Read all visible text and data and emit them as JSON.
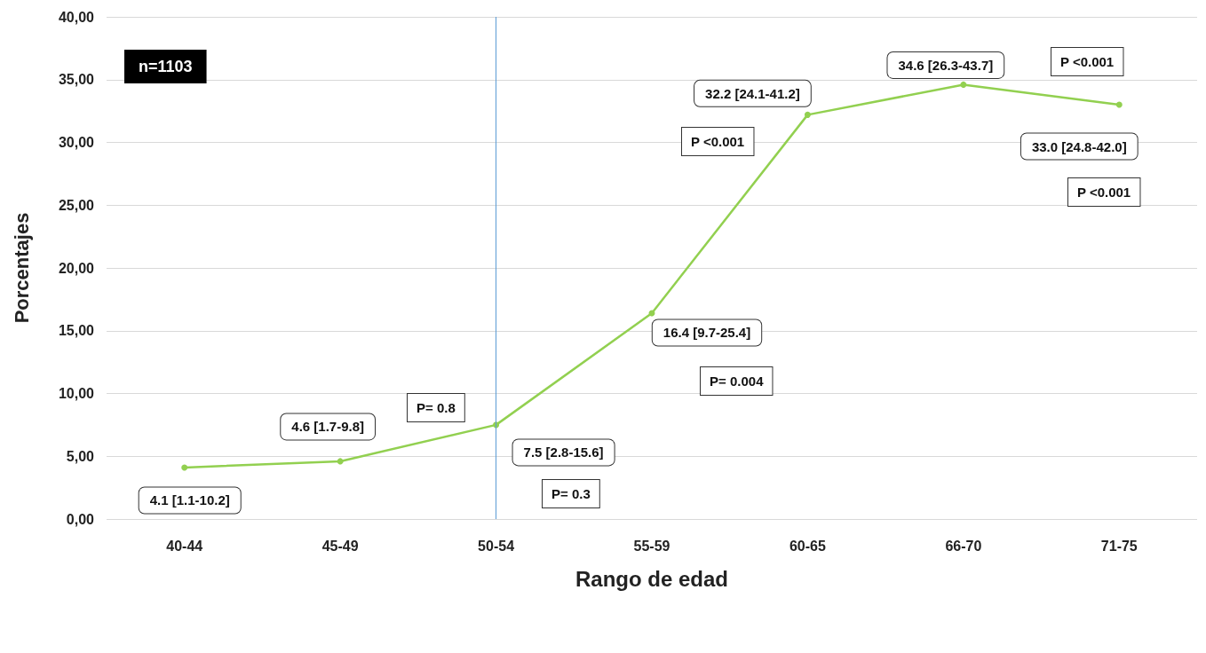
{
  "chart_data": {
    "type": "line",
    "xlabel": "Rango de edad",
    "ylabel": "Porcentajes",
    "categories": [
      "40-44",
      "45-49",
      "50-54",
      "55-59",
      "60-65",
      "66-70",
      "71-75"
    ],
    "series": [
      {
        "color": "#92d050",
        "values": [
          4.1,
          4.6,
          7.5,
          16.4,
          32.2,
          34.6,
          33.0
        ],
        "value_labels": [
          "4.1 [1.1-10.2]",
          "4.6 [1.7-9.8]",
          "7.5 [2.8-15.6]",
          "16.4 [9.7-25.4]",
          "32.2 [24.1-41.2]",
          "34.6 [26.3-43.7]",
          "33.0 [24.8-42.0]"
        ]
      }
    ],
    "ylim": [
      0,
      40
    ],
    "yticks": [
      {
        "value": 0,
        "label": "0,00"
      },
      {
        "value": 5,
        "label": "5,00"
      },
      {
        "value": 10,
        "label": "10,00"
      },
      {
        "value": 15,
        "label": "15,00"
      },
      {
        "value": 20,
        "label": "20,00"
      },
      {
        "value": 25,
        "label": "25,00"
      },
      {
        "value": 30,
        "label": "30,00"
      },
      {
        "value": 35,
        "label": "35,00"
      },
      {
        "value": 40,
        "label": "40,00"
      }
    ],
    "grid": "y",
    "marker": "circle",
    "line_style": "solid",
    "ref_lines": [
      {
        "axis": "x",
        "value": "50-54",
        "color": "#5b9bd5"
      }
    ],
    "annotations": [
      "n=1103",
      "P= 0.8",
      "P= 0.3",
      "P= 0.004",
      "P <0.001",
      "P <0.001",
      "P <0.001"
    ]
  }
}
